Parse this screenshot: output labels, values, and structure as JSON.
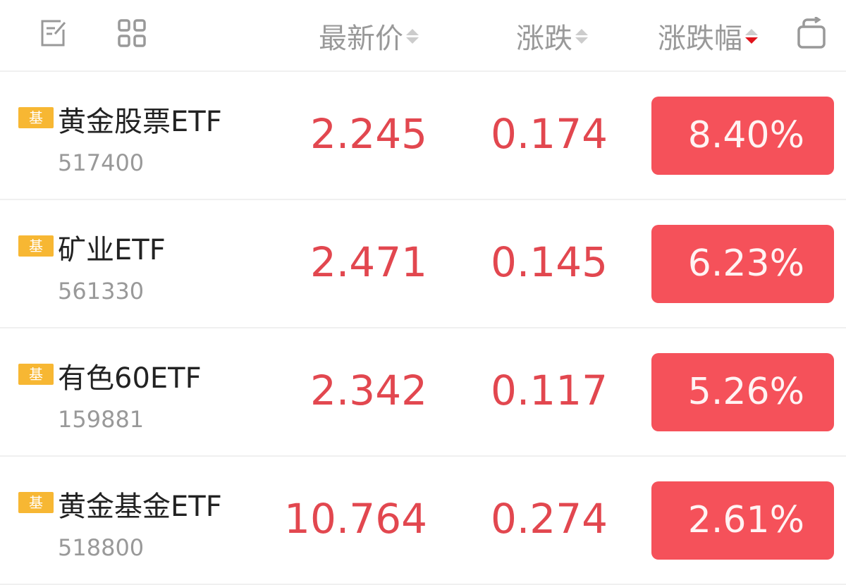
{
  "header": {
    "icons": [
      "edit-icon",
      "grid-icon",
      "rotate-icon"
    ],
    "columns": [
      {
        "label": "最新价",
        "sort": "none"
      },
      {
        "label": "涨跌",
        "sort": "none"
      },
      {
        "label": "涨跌幅",
        "sort": "descending"
      }
    ]
  },
  "colors": {
    "up": "#e2474f",
    "pill": "#f5515a",
    "badge": "#f7b733",
    "sort_active": "#e0131b"
  },
  "rows": [
    {
      "badge": "基",
      "name": "黄金股票ETF",
      "code": "517400",
      "price": "2.245",
      "change": "0.174",
      "pct": "8.40%"
    },
    {
      "badge": "基",
      "name": "矿业ETF",
      "code": "561330",
      "price": "2.471",
      "change": "0.145",
      "pct": "6.23%"
    },
    {
      "badge": "基",
      "name": "有色60ETF",
      "code": "159881",
      "price": "2.342",
      "change": "0.117",
      "pct": "5.26%"
    },
    {
      "badge": "基",
      "name": "黄金基金ETF",
      "code": "518800",
      "price": "10.764",
      "change": "0.274",
      "pct": "2.61%"
    }
  ]
}
